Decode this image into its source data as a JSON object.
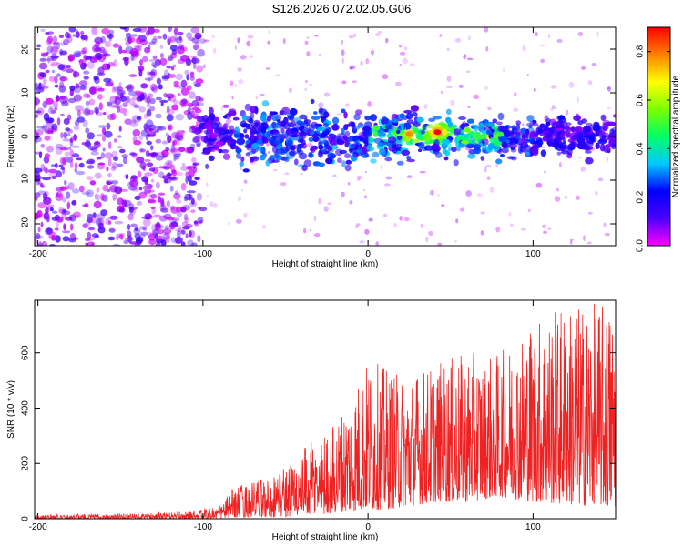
{
  "title": "S126.2026.072.02.05.G06",
  "chart_data": [
    {
      "type": "heatmap",
      "title": "S126.2026.072.02.05.G06",
      "xlabel": "Height of straight line (km)",
      "ylabel": "Frequency (Hz)",
      "xlim": [
        -202,
        150
      ],
      "ylim": [
        -25,
        25
      ],
      "xticks": [
        -200,
        -100,
        0,
        100
      ],
      "yticks": [
        -20,
        -10,
        0,
        10,
        20
      ],
      "colorbar": {
        "label": "Normalized spectral amplitude",
        "range": [
          0.0,
          0.9
        ],
        "ticks": [
          0.0,
          0.2,
          0.4,
          0.6,
          0.8
        ],
        "colormap": [
          "#ff00ff",
          "#4b00ff",
          "#0000ff",
          "#00c8ff",
          "#00ff66",
          "#7cff00",
          "#ffff00",
          "#ff8000",
          "#ff0000"
        ]
      },
      "description_regions": [
        {
          "x_range": [
            -202,
            -100
          ],
          "freq_range": [
            -25,
            25
          ],
          "amplitude_range": [
            0.0,
            0.1
          ]
        },
        {
          "x_range": [
            -100,
            150
          ],
          "freq_range": [
            -5,
            5
          ],
          "amplitude_range": [
            0.05,
            0.9
          ]
        }
      ],
      "peak": {
        "x": 42,
        "frequency": 1,
        "amplitude": 0.9
      }
    },
    {
      "type": "line",
      "xlabel": "Height of straight line (km)",
      "ylabel": "SNR (10 * v/v)",
      "xlim": [
        -202,
        150
      ],
      "ylim": [
        0,
        790
      ],
      "xticks": [
        -200,
        -100,
        0,
        100
      ],
      "yticks": [
        0,
        200,
        400,
        600
      ],
      "series": [
        {
          "name": "SNR",
          "color": "#ee2222",
          "envelope_x": [
            -202,
            -150,
            -110,
            -90,
            -80,
            -60,
            -40,
            -20,
            0,
            20,
            40,
            60,
            80,
            100,
            120,
            150
          ],
          "envelope_max": [
            15,
            18,
            25,
            50,
            120,
            150,
            250,
            350,
            580,
            520,
            560,
            600,
            600,
            730,
            780,
            780
          ],
          "envelope_min": [
            0,
            0,
            0,
            0,
            5,
            5,
            10,
            20,
            30,
            40,
            60,
            60,
            80,
            60,
            50,
            40
          ]
        }
      ]
    }
  ]
}
